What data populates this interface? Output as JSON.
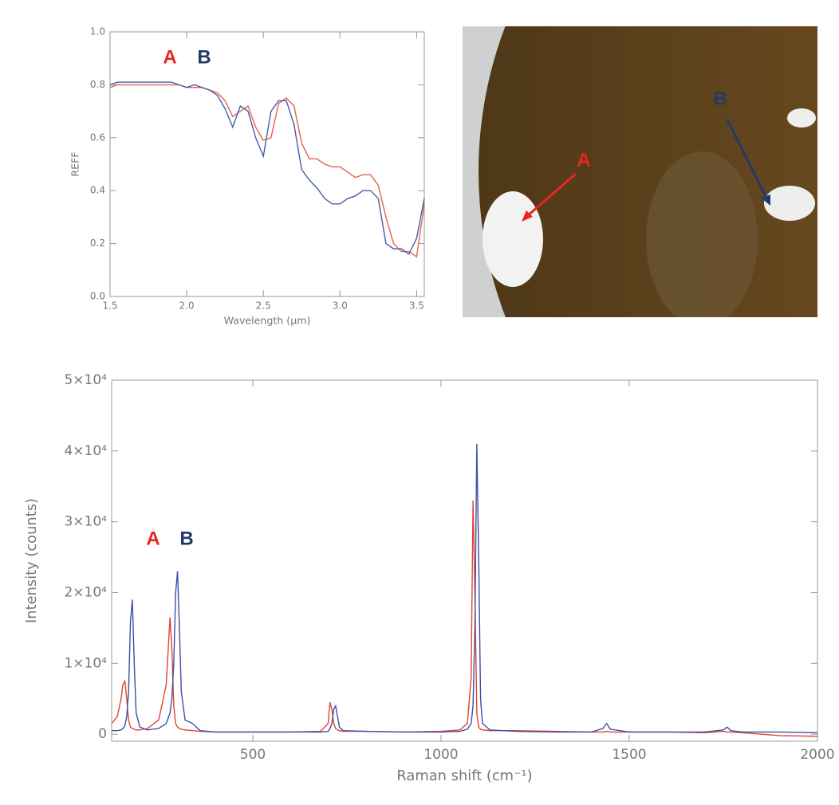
{
  "chart_data": [
    {
      "type": "line",
      "x_label": "Wavelength (µm)",
      "y_label": "REFF",
      "annotations": [
        "A",
        "B"
      ],
      "x": [
        1.5,
        1.55,
        1.6,
        1.65,
        1.7,
        1.75,
        1.8,
        1.85,
        1.9,
        1.95,
        2.0,
        2.05,
        2.1,
        2.15,
        2.2,
        2.25,
        2.3,
        2.35,
        2.4,
        2.45,
        2.5,
        2.55,
        2.6,
        2.65,
        2.7,
        2.75,
        2.8,
        2.85,
        2.9,
        2.95,
        3.0,
        3.05,
        3.1,
        3.15,
        3.2,
        3.25,
        3.3,
        3.35,
        3.4,
        3.45,
        3.5,
        3.55
      ],
      "series": [
        {
          "name": "A",
          "color": "#e8604f",
          "values": [
            0.79,
            0.8,
            0.8,
            0.8,
            0.8,
            0.8,
            0.8,
            0.8,
            0.8,
            0.8,
            0.79,
            0.79,
            0.79,
            0.78,
            0.77,
            0.74,
            0.68,
            0.7,
            0.72,
            0.64,
            0.59,
            0.6,
            0.73,
            0.75,
            0.72,
            0.58,
            0.52,
            0.52,
            0.5,
            0.49,
            0.49,
            0.47,
            0.45,
            0.46,
            0.46,
            0.42,
            0.3,
            0.2,
            0.17,
            0.17,
            0.15,
            0.35
          ]
        },
        {
          "name": "B",
          "color": "#4a5aa8",
          "values": [
            0.8,
            0.81,
            0.81,
            0.81,
            0.81,
            0.81,
            0.81,
            0.81,
            0.81,
            0.8,
            0.79,
            0.8,
            0.79,
            0.78,
            0.76,
            0.71,
            0.64,
            0.72,
            0.7,
            0.6,
            0.53,
            0.7,
            0.74,
            0.74,
            0.65,
            0.48,
            0.44,
            0.41,
            0.37,
            0.35,
            0.35,
            0.37,
            0.38,
            0.4,
            0.4,
            0.37,
            0.2,
            0.18,
            0.18,
            0.16,
            0.22,
            0.37
          ]
        }
      ],
      "xlim": [
        1.5,
        3.55
      ],
      "xticks": [
        1.5,
        {
          "value": 2,
          "label": "2.0"
        },
        2.5,
        {
          "value": 3,
          "label": "3.0"
        },
        3.5
      ],
      "ylim": [
        0,
        1
      ],
      "yticks": [
        {
          "value": 0,
          "label": "0.0"
        },
        0.2,
        0.4,
        0.6,
        0.8,
        {
          "value": 1,
          "label": "1.0"
        }
      ]
    },
    {
      "type": "line",
      "x_label": "Raman shift (cm⁻¹)",
      "y_label": "Intensity (counts)",
      "annotations": [
        "A",
        "B"
      ],
      "x": [
        125,
        140,
        150,
        155,
        160,
        165,
        170,
        175,
        180,
        185,
        190,
        200,
        220,
        250,
        270,
        280,
        285,
        290,
        295,
        300,
        305,
        310,
        320,
        340,
        360,
        400,
        500,
        600,
        680,
        700,
        705,
        710,
        715,
        720,
        725,
        730,
        740,
        800,
        900,
        1000,
        1050,
        1070,
        1080,
        1085,
        1090,
        1095,
        1100,
        1105,
        1110,
        1130,
        1200,
        1300,
        1400,
        1430,
        1440,
        1450,
        1500,
        1600,
        1700,
        1750,
        1760,
        1770,
        1800,
        1900,
        2000
      ],
      "series": [
        {
          "name": "A",
          "color": "#e0452f",
          "values": [
            1500,
            2500,
            5000,
            7000,
            7500,
            5000,
            2000,
            1000,
            800,
            700,
            600,
            600,
            800,
            2000,
            7000,
            16500,
            12000,
            4000,
            1500,
            1000,
            800,
            700,
            600,
            500,
            400,
            300,
            300,
            300,
            400,
            1500,
            4500,
            3500,
            1500,
            800,
            600,
            500,
            400,
            400,
            300,
            400,
            600,
            1500,
            8000,
            33000,
            20000,
            3000,
            1000,
            700,
            600,
            500,
            500,
            400,
            300,
            300,
            400,
            300,
            300,
            300,
            200,
            400,
            300,
            300,
            200,
            -200,
            -300
          ]
        },
        {
          "name": "B",
          "color": "#3d4fa8",
          "values": [
            500,
            500,
            600,
            800,
            1200,
            2500,
            6000,
            16000,
            19000,
            10000,
            3000,
            1000,
            600,
            800,
            1500,
            3000,
            5000,
            10000,
            20000,
            23000,
            15000,
            6000,
            2000,
            1500,
            500,
            300,
            300,
            300,
            300,
            400,
            800,
            1500,
            3500,
            4000,
            2500,
            1000,
            500,
            400,
            300,
            300,
            400,
            700,
            1500,
            4000,
            15000,
            41000,
            25000,
            5000,
            1500,
            600,
            400,
            300,
            300,
            800,
            1500,
            700,
            300,
            300,
            300,
            600,
            1000,
            500,
            300,
            300,
            200
          ]
        }
      ],
      "xlim": [
        125,
        2000
      ],
      "xticks": [
        500,
        1000,
        1500,
        2000
      ],
      "ylim": [
        -1000,
        50000
      ],
      "yticks": [
        0,
        {
          "value": 10000,
          "label": "1×10⁴"
        },
        {
          "value": 20000,
          "label": "2×10⁴"
        },
        {
          "value": 30000,
          "label": "3×10⁴"
        },
        {
          "value": 40000,
          "label": "4×10⁴"
        },
        {
          "value": 50000,
          "label": "5×10⁴"
        }
      ]
    }
  ],
  "photo": {
    "labels": [
      "A",
      "B"
    ]
  }
}
